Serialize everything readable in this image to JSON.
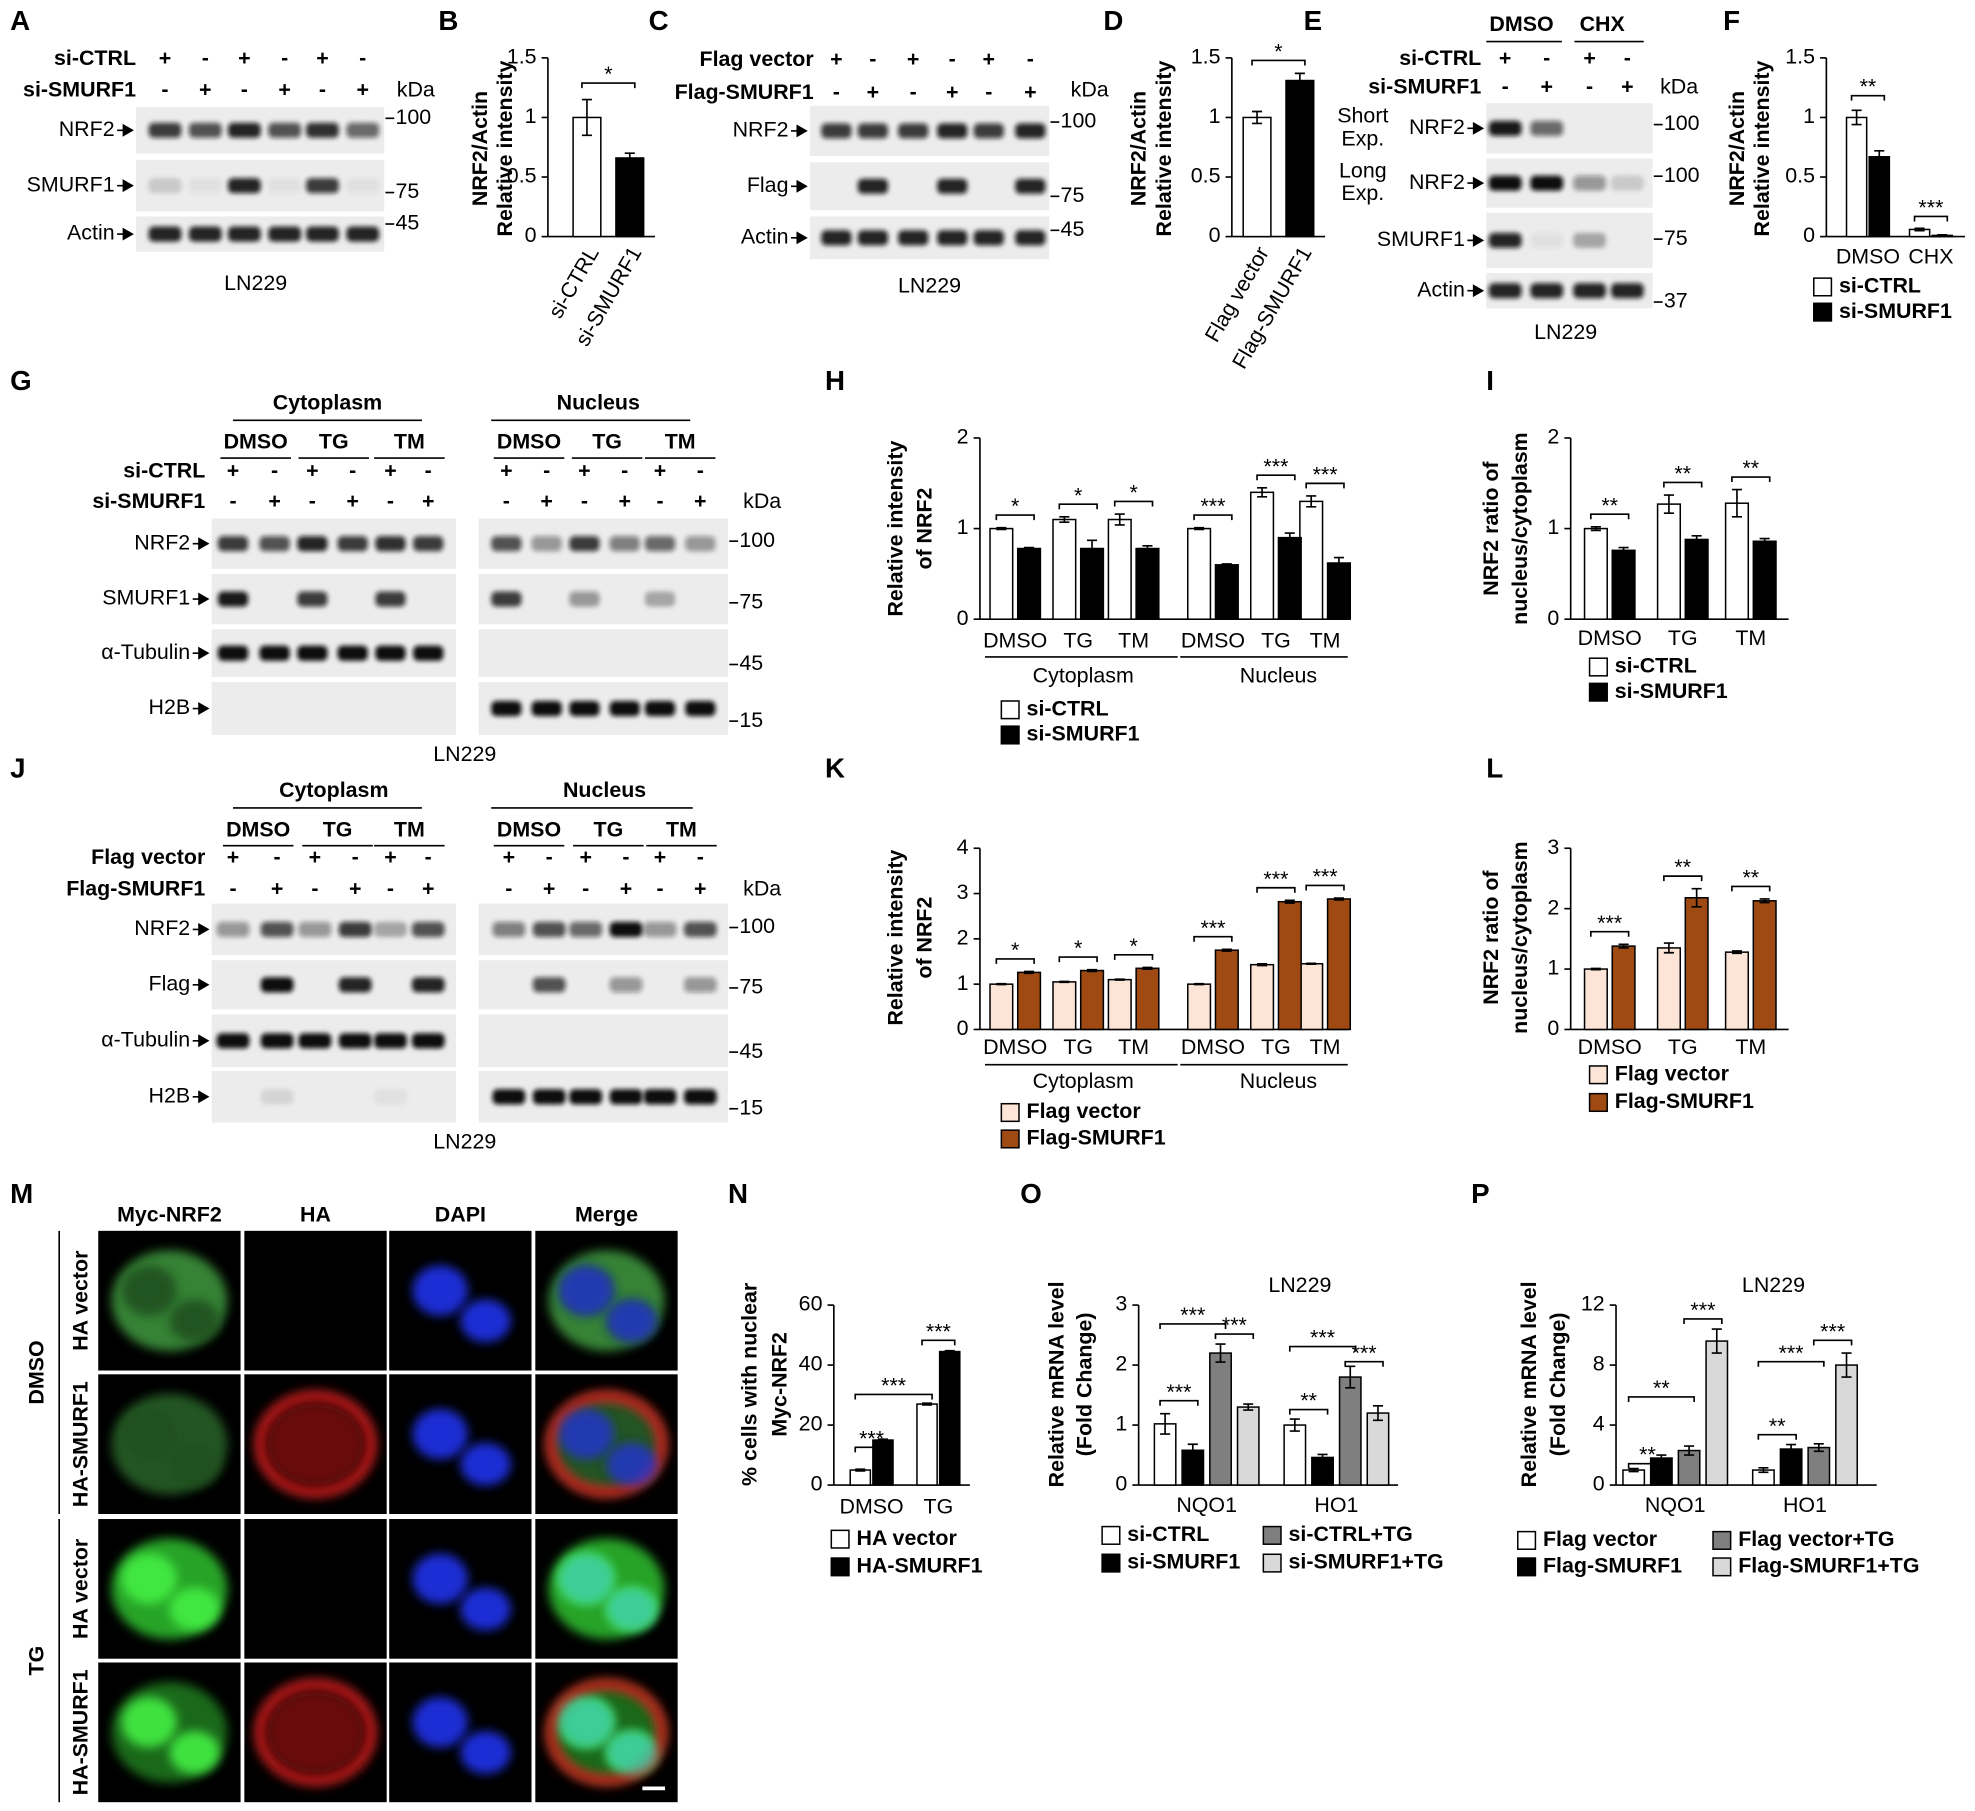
{
  "blots": [
    {
      "panel": "A",
      "conditions": [
        {
          "label": "si-CTRL",
          "signs": [
            "+",
            "-",
            "+",
            "-",
            "+",
            "-"
          ]
        },
        {
          "label": "si-SMURF1",
          "signs": [
            "-",
            "+",
            "-",
            "+",
            "-",
            "+"
          ]
        }
      ],
      "unit": "kDa",
      "rows": [
        {
          "label": "NRF2",
          "marker": 100
        },
        {
          "label": "SMURF1",
          "marker": 75
        },
        {
          "label": "Actin",
          "marker": 45
        }
      ],
      "cell_line": "LN229"
    },
    {
      "panel": "C",
      "conditions": [
        {
          "label": "Flag vector",
          "signs": [
            "+",
            "-",
            "+",
            "-",
            "+",
            "-"
          ]
        },
        {
          "label": "Flag-SMURF1",
          "signs": [
            "-",
            "+",
            "-",
            "+",
            "-",
            "+"
          ]
        }
      ],
      "unit": "kDa",
      "rows": [
        {
          "label": "NRF2",
          "marker": 100
        },
        {
          "label": "Flag",
          "marker": 75
        },
        {
          "label": "Actin",
          "marker": 45
        }
      ],
      "cell_line": "LN229"
    },
    {
      "panel": "E",
      "groups": [
        "DMSO",
        "CHX"
      ],
      "conditions": [
        {
          "label": "si-CTRL",
          "signs": [
            "+",
            "-",
            "+",
            "-"
          ]
        },
        {
          "label": "si-SMURF1",
          "signs": [
            "-",
            "+",
            "-",
            "+"
          ]
        }
      ],
      "unit": "kDa",
      "rows": [
        {
          "label": "NRF2",
          "exposure": [
            "Short",
            "Exp."
          ],
          "marker": 100
        },
        {
          "label": "NRF2",
          "exposure": [
            "Long",
            "Exp."
          ],
          "marker": 100
        },
        {
          "label": "SMURF1",
          "marker": 75
        },
        {
          "label": "Actin",
          "marker": 37
        }
      ],
      "cell_line": "LN229"
    },
    {
      "panel": "G",
      "groups": [
        "Cytoplasm",
        "Nucleus"
      ],
      "subgroups": [
        "DMSO",
        "TG",
        "TM",
        "DMSO",
        "TG",
        "TM"
      ],
      "conditions": [
        {
          "label": "si-CTRL",
          "signs": [
            "+",
            "-",
            "+",
            "-",
            "+",
            "-",
            "+",
            "-",
            "+",
            "-",
            "+",
            "-"
          ]
        },
        {
          "label": "si-SMURF1",
          "signs": [
            "-",
            "+",
            "-",
            "+",
            "-",
            "+",
            "-",
            "+",
            "-",
            "+",
            "-",
            "+"
          ]
        }
      ],
      "unit": "kDa",
      "rows": [
        {
          "label": "NRF2",
          "marker": 100
        },
        {
          "label": "SMURF1",
          "marker": 75
        },
        {
          "label": "α-Tubulin",
          "marker": 45
        },
        {
          "label": "H2B",
          "marker": 15
        }
      ],
      "cell_line": "LN229"
    },
    {
      "panel": "J",
      "groups": [
        "Cytoplasm",
        "Nucleus"
      ],
      "subgroups": [
        "DMSO",
        "TG",
        "TM",
        "DMSO",
        "TG",
        "TM"
      ],
      "conditions": [
        {
          "label": "Flag vector",
          "signs": [
            "+",
            "-",
            "+",
            "-",
            "+",
            "-",
            "+",
            "-",
            "+",
            "-",
            "+",
            "-"
          ]
        },
        {
          "label": "Flag-SMURF1",
          "signs": [
            "-",
            "+",
            "-",
            "+",
            "-",
            "+",
            "-",
            "+",
            "-",
            "+",
            "-",
            "+"
          ]
        }
      ],
      "unit": "kDa",
      "rows": [
        {
          "label": "NRF2",
          "marker": 100
        },
        {
          "label": "Flag",
          "marker": 75
        },
        {
          "label": "α-Tubulin",
          "marker": 45
        },
        {
          "label": "H2B",
          "marker": 15
        }
      ],
      "cell_line": "LN229"
    }
  ],
  "chart_data": [
    {
      "type": "bar",
      "panel": "B",
      "ylabel": [
        "NRF2/Actin",
        "Relative intensity"
      ],
      "categories": [
        "si-CTRL",
        "si-SMURF1"
      ],
      "values": [
        1,
        0.66
      ],
      "errors": [
        0.15,
        0.04
      ],
      "colors": [
        "#ffffff",
        "#000000"
      ],
      "ylim": [
        0,
        1.5
      ],
      "yticks": [
        0,
        0.5,
        1,
        1.5
      ],
      "annotations": [
        "*"
      ]
    },
    {
      "type": "bar",
      "panel": "D",
      "ylabel": [
        "NRF2/Actin",
        "Relative intensity"
      ],
      "categories": [
        "Flag vector",
        "Flag-SMURF1"
      ],
      "values": [
        1,
        1.31
      ],
      "errors": [
        0.05,
        0.06
      ],
      "colors": [
        "#ffffff",
        "#000000"
      ],
      "ylim": [
        0,
        1.5
      ],
      "yticks": [
        0,
        0.5,
        1,
        1.5
      ],
      "annotations": [
        "*"
      ]
    },
    {
      "type": "bar",
      "panel": "F",
      "ylabel": [
        "NRF2/Actin",
        "Relative intensity"
      ],
      "categories": [
        "DMSO",
        "CHX"
      ],
      "series": [
        {
          "name": "si-CTRL",
          "color": "#ffffff",
          "values": [
            1,
            0.06
          ],
          "errors": [
            0.06,
            0.01
          ]
        },
        {
          "name": "si-SMURF1",
          "color": "#000000",
          "values": [
            0.67,
            0.01
          ],
          "errors": [
            0.05,
            0.005
          ]
        }
      ],
      "ylim": [
        0,
        1.5
      ],
      "yticks": [
        0,
        0.5,
        1,
        1.5
      ],
      "annotations": [
        "**",
        "***"
      ]
    },
    {
      "type": "bar",
      "panel": "H",
      "ylabel": [
        "Relative intensity",
        "of NRF2"
      ],
      "categories": [
        "DMSO",
        "TG",
        "TM",
        "DMSO",
        "TG",
        "TM"
      ],
      "groups": [
        "Cytoplasm",
        "Nucleus"
      ],
      "series": [
        {
          "name": "si-CTRL",
          "color": "#ffffff",
          "values": [
            1,
            1.1,
            1.1,
            1,
            1.4,
            1.3
          ],
          "errors": [
            0.01,
            0.03,
            0.06,
            0.01,
            0.05,
            0.06
          ]
        },
        {
          "name": "si-SMURF1",
          "color": "#000000",
          "values": [
            0.78,
            0.78,
            0.78,
            0.6,
            0.9,
            0.62
          ],
          "errors": [
            0.01,
            0.09,
            0.03,
            0.01,
            0.05,
            0.06
          ]
        }
      ],
      "ylim": [
        0,
        2
      ],
      "yticks": [
        0,
        1,
        2
      ],
      "annotations": [
        "*",
        "*",
        "*",
        "***",
        "***",
        "***"
      ]
    },
    {
      "type": "bar",
      "panel": "I",
      "ylabel": [
        "NRF2 ratio of",
        "nucleus/cytoplasm"
      ],
      "categories": [
        "DMSO",
        "TG",
        "TM"
      ],
      "series": [
        {
          "name": "si-CTRL",
          "color": "#ffffff",
          "values": [
            1,
            1.27,
            1.28
          ],
          "errors": [
            0.02,
            0.1,
            0.15
          ]
        },
        {
          "name": "si-SMURF1",
          "color": "#000000",
          "values": [
            0.76,
            0.88,
            0.86
          ],
          "errors": [
            0.03,
            0.04,
            0.03
          ]
        }
      ],
      "ylim": [
        0,
        2
      ],
      "yticks": [
        0,
        1,
        2
      ],
      "annotations": [
        "**",
        "**",
        "**"
      ]
    },
    {
      "type": "bar",
      "panel": "K",
      "ylabel": [
        "Relative intensity",
        "of NRF2"
      ],
      "categories": [
        "DMSO",
        "TG",
        "TM",
        "DMSO",
        "TG",
        "TM"
      ],
      "groups": [
        "Cytoplasm",
        "Nucleus"
      ],
      "series": [
        {
          "name": "Flag vector",
          "color": "#fce4d6",
          "values": [
            1,
            1.05,
            1.1,
            1,
            1.43,
            1.45
          ],
          "errors": [
            0.01,
            0.01,
            0.01,
            0.01,
            0.02,
            0.01
          ]
        },
        {
          "name": "Flag-SMURF1",
          "color": "#9e4a12",
          "values": [
            1.26,
            1.3,
            1.35,
            1.75,
            2.82,
            2.88
          ],
          "errors": [
            0.02,
            0.02,
            0.02,
            0.02,
            0.03,
            0.02
          ]
        }
      ],
      "ylim": [
        0,
        4
      ],
      "yticks": [
        0,
        1,
        2,
        3,
        4
      ],
      "annotations": [
        "*",
        "*",
        "*",
        "***",
        "***",
        "***"
      ]
    },
    {
      "type": "bar",
      "panel": "L",
      "ylabel": [
        "NRF2 ratio of",
        "nucleus/cytoplasm"
      ],
      "categories": [
        "DMSO",
        "TG",
        "TM"
      ],
      "series": [
        {
          "name": "Flag vector",
          "color": "#fce4d6",
          "values": [
            1,
            1.35,
            1.28
          ],
          "errors": [
            0.01,
            0.08,
            0.02
          ]
        },
        {
          "name": "Flag-SMURF1",
          "color": "#9e4a12",
          "values": [
            1.38,
            2.18,
            2.13
          ],
          "errors": [
            0.03,
            0.15,
            0.03
          ]
        }
      ],
      "ylim": [
        0,
        3
      ],
      "yticks": [
        0,
        1,
        2,
        3
      ],
      "annotations": [
        "***",
        "**",
        "**"
      ]
    },
    {
      "type": "bar",
      "panel": "N",
      "ylabel": [
        "% cells with nuclear",
        "Myc-NRF2"
      ],
      "categories": [
        "DMSO",
        "TG"
      ],
      "series": [
        {
          "name": "HA vector",
          "color": "#ffffff",
          "values": [
            5,
            27
          ],
          "errors": [
            0.3,
            0.3
          ]
        },
        {
          "name": "HA-SMURF1",
          "color": "#000000",
          "values": [
            15,
            44.5
          ],
          "errors": [
            0.3,
            0.3
          ]
        }
      ],
      "ylim": [
        0,
        60
      ],
      "yticks": [
        0,
        20,
        40,
        60
      ],
      "annotations": [
        "***",
        "***",
        "***"
      ]
    },
    {
      "type": "bar",
      "panel": "O",
      "title": "LN229",
      "ylabel": [
        "Relative mRNA level",
        "(Fold Change)"
      ],
      "categories": [
        "NQO1",
        "HO1"
      ],
      "series": [
        {
          "name": "si-CTRL",
          "color": "#ffffff",
          "values": [
            1.02,
            1.0
          ],
          "errors": [
            0.17,
            0.1
          ]
        },
        {
          "name": "si-SMURF1",
          "color": "#000000",
          "values": [
            0.58,
            0.46
          ],
          "errors": [
            0.1,
            0.05
          ]
        },
        {
          "name": "si-CTRL+TG",
          "color": "#7f7f7f",
          "values": [
            2.2,
            1.8
          ],
          "errors": [
            0.15,
            0.18
          ]
        },
        {
          "name": "si-SMURF1+TG",
          "color": "#d9d9d9",
          "values": [
            1.3,
            1.2
          ],
          "errors": [
            0.05,
            0.12
          ]
        }
      ],
      "ylim": [
        0,
        3
      ],
      "yticks": [
        0,
        1,
        2,
        3
      ],
      "annotations": [
        "***",
        "***",
        "***",
        "**",
        "***",
        "***"
      ]
    },
    {
      "type": "bar",
      "panel": "P",
      "title": "LN229",
      "ylabel": [
        "Relative mRNA level",
        "(Fold Change)"
      ],
      "categories": [
        "NQO1",
        "HO1"
      ],
      "series": [
        {
          "name": "Flag vector",
          "color": "#ffffff",
          "values": [
            1,
            1
          ],
          "errors": [
            0.1,
            0.15
          ]
        },
        {
          "name": "Flag-SMURF1",
          "color": "#000000",
          "values": [
            1.8,
            2.4
          ],
          "errors": [
            0.2,
            0.3
          ]
        },
        {
          "name": "Flag vector+TG",
          "color": "#7f7f7f",
          "values": [
            2.3,
            2.5
          ],
          "errors": [
            0.3,
            0.25
          ]
        },
        {
          "name": "Flag-SMURF1+TG",
          "color": "#d9d9d9",
          "values": [
            9.6,
            8
          ],
          "errors": [
            0.8,
            0.8
          ]
        }
      ],
      "ylim": [
        0,
        12
      ],
      "yticks": [
        0,
        4,
        8,
        12
      ],
      "annotations": [
        "**",
        "**",
        "***",
        "**",
        "***",
        "***"
      ]
    }
  ],
  "microscopy": {
    "panel": "M",
    "columns": [
      "Myc-NRF2",
      "HA",
      "DAPI",
      "Merge"
    ],
    "treatments": [
      "DMSO",
      "TG"
    ],
    "rows": [
      "HA vector",
      "HA-SMURF1",
      "HA vector",
      "HA-SMURF1"
    ]
  }
}
